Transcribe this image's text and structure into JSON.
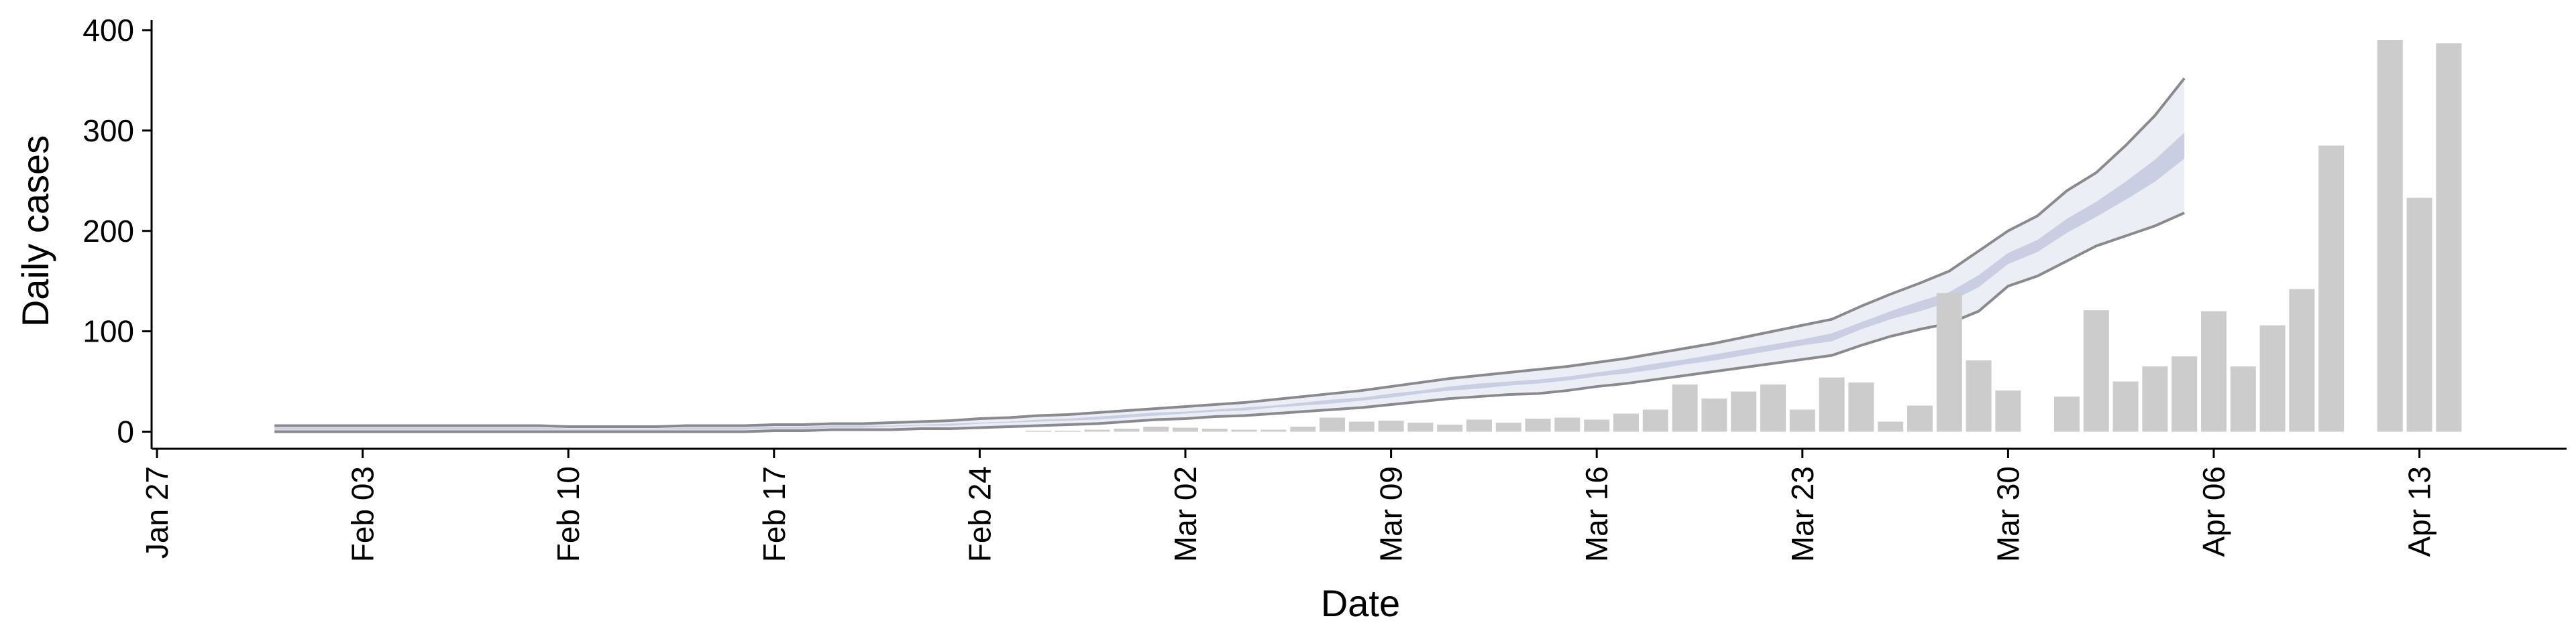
{
  "chart_data": {
    "type": "bar",
    "x_label": "Date",
    "y_label": "Daily cases",
    "categories": [
      "Jan 27",
      null,
      null,
      null,
      null,
      null,
      null,
      "Feb 03",
      null,
      null,
      null,
      null,
      null,
      null,
      "Feb 10",
      null,
      null,
      null,
      null,
      null,
      null,
      "Feb 17",
      null,
      null,
      null,
      null,
      null,
      null,
      "Feb 24",
      null,
      null,
      null,
      null,
      null,
      null,
      "Mar 02",
      null,
      null,
      null,
      null,
      null,
      null,
      "Mar 09",
      null,
      null,
      null,
      null,
      null,
      null,
      "Mar 16",
      null,
      null,
      null,
      null,
      null,
      null,
      "Mar 23",
      null,
      null,
      null,
      null,
      null,
      null,
      "Mar 30",
      null,
      null,
      null,
      null,
      null,
      null,
      "Apr 06",
      null,
      null,
      null,
      null,
      null,
      null,
      "Apr 13",
      null,
      null,
      null,
      null
    ],
    "values": [
      null,
      null,
      null,
      null,
      0,
      0,
      0,
      0,
      0,
      0,
      0,
      0,
      0,
      0,
      0,
      0,
      0,
      0,
      0,
      0,
      0,
      0,
      0,
      0,
      0,
      0,
      0,
      0,
      0,
      0,
      1,
      1,
      2,
      3,
      5,
      4,
      3,
      2,
      2,
      5,
      14,
      10,
      11,
      9,
      7,
      12,
      9,
      13,
      14,
      12,
      18,
      22,
      47,
      33,
      40,
      47,
      22,
      54,
      49,
      10,
      26,
      138,
      71,
      41,
      null,
      35,
      121,
      50,
      65,
      75,
      120,
      65,
      106,
      142,
      285,
      null,
      390,
      233,
      387,
      null,
      null,
      null
    ],
    "color": "#cccccc",
    "lines": [
      {
        "color": "#8a8a8e",
        "values": [
          null,
          null,
          null,
          null,
          6,
          6,
          6,
          6,
          6,
          6,
          6,
          6,
          6,
          6,
          5,
          5,
          5,
          5,
          6,
          6,
          6,
          7,
          7,
          8,
          8,
          9,
          10,
          11,
          13,
          14,
          16,
          17,
          19,
          21,
          23,
          25,
          27,
          29,
          32,
          35,
          38,
          41,
          45,
          49,
          53,
          56,
          59,
          62,
          65,
          69,
          73,
          78,
          83,
          88,
          94,
          100,
          106,
          112,
          125,
          137,
          148,
          160,
          180,
          200,
          215,
          240,
          258,
          285,
          315,
          352,
          null,
          null,
          null,
          null,
          null,
          null,
          null,
          null,
          null,
          null,
          null,
          null
        ]
      },
      {
        "color": "#8a8a8e",
        "values": [
          null,
          null,
          null,
          null,
          0,
          0,
          0,
          0,
          0,
          0,
          0,
          0,
          0,
          0,
          0,
          0,
          0,
          0,
          0,
          0,
          0,
          1,
          1,
          2,
          2,
          2,
          3,
          3,
          4,
          5,
          6,
          7,
          8,
          10,
          12,
          13,
          15,
          16,
          18,
          20,
          22,
          24,
          27,
          30,
          33,
          35,
          37,
          38,
          41,
          45,
          48,
          52,
          56,
          60,
          64,
          68,
          72,
          76,
          86,
          95,
          102,
          108,
          120,
          145,
          155,
          170,
          185,
          195,
          205,
          218,
          null,
          null,
          null,
          null,
          null,
          null,
          null,
          null,
          null,
          null,
          null,
          null
        ]
      }
    ],
    "fill_between_lines": "#eceef5",
    "bands": [
      {
        "color": "#c9cee2",
        "lower": [
          null,
          null,
          null,
          null,
          2,
          2,
          2,
          2,
          2,
          2,
          2,
          2,
          2,
          2,
          2,
          2,
          2,
          2,
          2,
          2,
          2,
          3,
          3,
          4,
          4,
          5,
          6,
          6,
          8,
          9,
          10,
          11,
          12,
          14,
          16,
          18,
          20,
          21,
          24,
          26,
          28,
          31,
          34,
          38,
          41,
          43,
          46,
          48,
          51,
          55,
          58,
          62,
          67,
          71,
          76,
          81,
          86,
          90,
          102,
          112,
          120,
          129,
          144,
          167,
          179,
          198,
          214,
          231,
          249,
          272,
          null,
          null,
          null,
          null,
          null,
          null,
          null,
          null,
          null,
          null,
          null,
          null
        ],
        "upper": [
          null,
          null,
          null,
          null,
          4,
          4,
          4,
          4,
          4,
          4,
          4,
          4,
          4,
          4,
          3,
          3,
          3,
          3,
          4,
          4,
          4,
          5,
          5,
          6,
          6,
          6,
          7,
          8,
          9,
          10,
          12,
          13,
          15,
          17,
          19,
          20,
          22,
          24,
          26,
          29,
          32,
          34,
          38,
          41,
          45,
          48,
          50,
          52,
          55,
          59,
          63,
          68,
          72,
          77,
          82,
          87,
          92,
          98,
          109,
          120,
          130,
          139,
          156,
          178,
          191,
          212,
          229,
          249,
          271,
          298,
          null,
          null,
          null,
          null,
          null,
          null,
          null,
          null,
          null,
          null,
          null,
          null
        ]
      }
    ],
    "ylim": [
      -17,
      410
    ],
    "yticks": [
      0,
      100,
      200,
      300,
      400
    ]
  }
}
